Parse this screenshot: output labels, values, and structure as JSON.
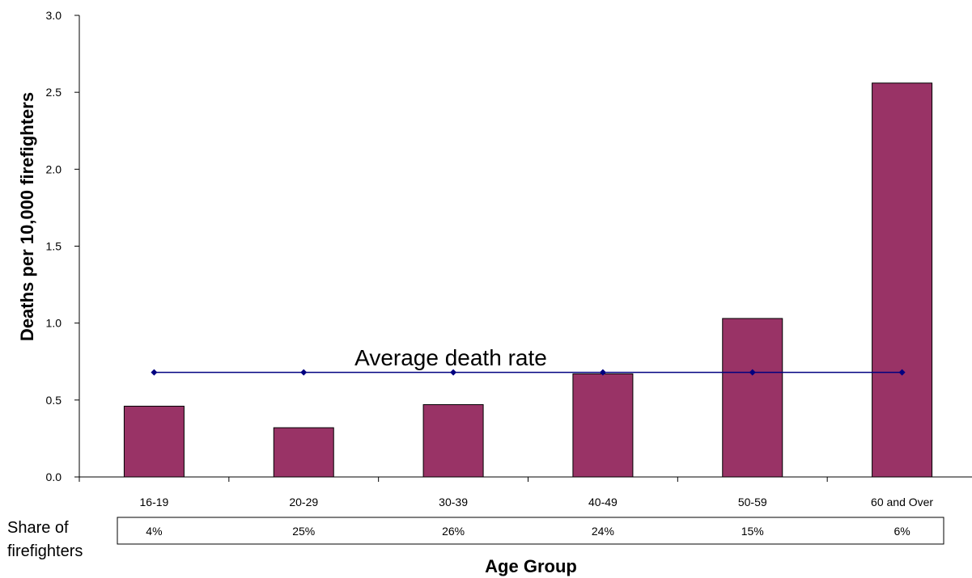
{
  "chart_data": {
    "type": "bar",
    "categories": [
      "16-19",
      "20-29",
      "30-39",
      "40-49",
      "50-59",
      "60 and Over"
    ],
    "series": [
      {
        "values": [
          0.46,
          0.32,
          0.47,
          0.67,
          1.03,
          2.56
        ],
        "color": "#993366"
      }
    ],
    "average_line": {
      "label": "Average death rate",
      "value": 0.68,
      "color": "#000080"
    },
    "xlabel": "Age Group",
    "ylabel": "Deaths per 10,000 firefighters",
    "ylim": [
      0,
      3.0
    ],
    "yticks": [
      "0.0",
      "0.5",
      "1.0",
      "1.5",
      "2.0",
      "2.5",
      "3.0"
    ],
    "grid": false,
    "share_table": {
      "label_line1": "Share of",
      "label_line2": "firefighters",
      "values": [
        "4%",
        "25%",
        "26%",
        "24%",
        "15%",
        "6%"
      ]
    }
  }
}
